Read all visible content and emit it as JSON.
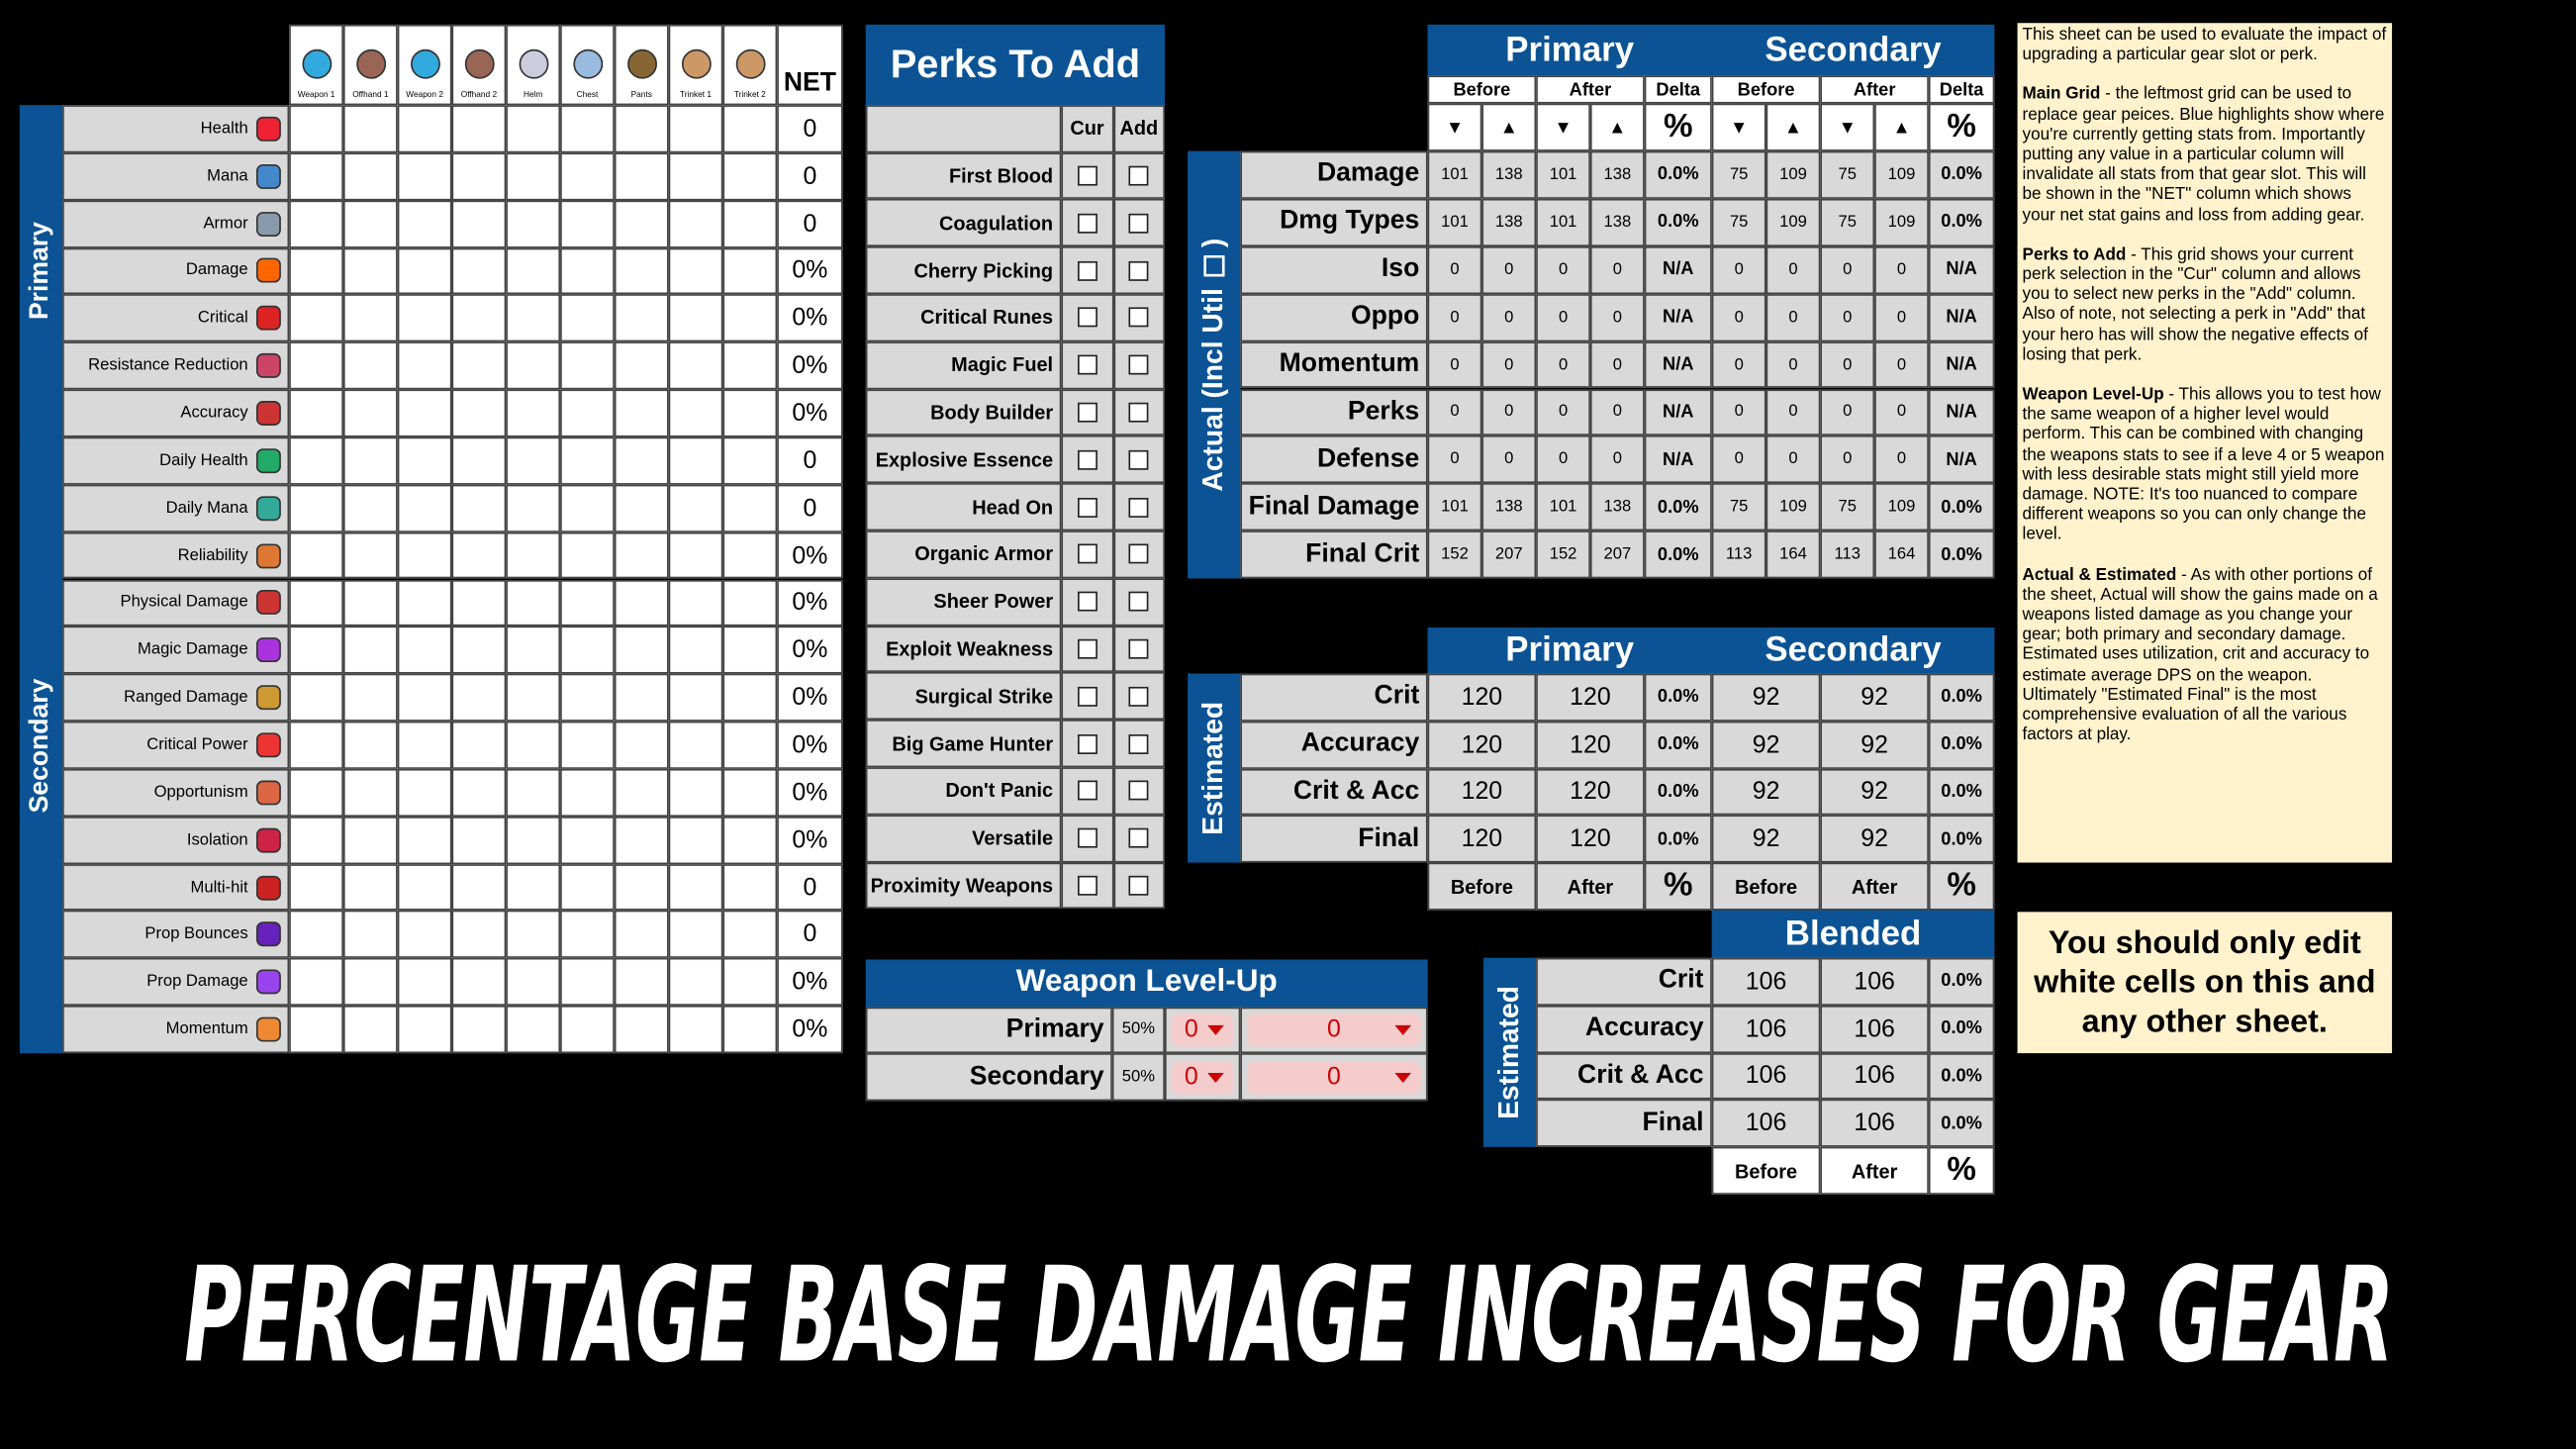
{
  "main_grid": {
    "columns": [
      "Weapon 1",
      "Offhand 1",
      "Weapon 2",
      "Offhand 2",
      "Helm",
      "Chest",
      "Pants",
      "Trinket 1",
      "Trinket 2"
    ],
    "net_header": "NET",
    "sections": [
      {
        "label": "Primary",
        "rows": [
          {
            "label": "Health",
            "net": "0"
          },
          {
            "label": "Mana",
            "net": "0"
          },
          {
            "label": "Armor",
            "net": "0"
          },
          {
            "label": "Damage",
            "net": "0%"
          },
          {
            "label": "Critical",
            "net": "0%"
          },
          {
            "label": "Resistance Reduction",
            "net": "0%"
          },
          {
            "label": "Accuracy",
            "net": "0%"
          }
        ]
      },
      {
        "label": "Secondary",
        "rows": [
          {
            "label": "Daily Health",
            "net": "0"
          },
          {
            "label": "Daily Mana",
            "net": "0"
          },
          {
            "label": "Reliability",
            "net": "0%"
          },
          {
            "label": "Physical Damage",
            "net": "0%"
          },
          {
            "label": "Magic Damage",
            "net": "0%"
          },
          {
            "label": "Ranged Damage",
            "net": "0%"
          },
          {
            "label": "Critical Power",
            "net": "0%"
          },
          {
            "label": "Opportunism",
            "net": "0%"
          },
          {
            "label": "Isolation",
            "net": "0%"
          },
          {
            "label": "Multi-hit",
            "net": "0"
          },
          {
            "label": "Prop Bounces",
            "net": "0"
          },
          {
            "label": "Prop Damage",
            "net": "0%"
          },
          {
            "label": "Momentum",
            "net": "0%"
          }
        ]
      }
    ]
  },
  "perks": {
    "title": "Perks To Add",
    "headers": [
      "Cur",
      "Add"
    ],
    "rows": [
      "First Blood",
      "Coagulation",
      "Cherry Picking",
      "Critical Runes",
      "Magic Fuel",
      "Body Builder",
      "Explosive Essence",
      "Head On",
      "Organic Armor",
      "Sheer Power",
      "Exploit Weakness",
      "Surgical Strike",
      "Big Game Hunter",
      "Don't Panic",
      "Versatile",
      "Proximity Weapons"
    ]
  },
  "actual": {
    "side_label": "Actual  (Incl Util ☐)",
    "groups": [
      "Primary",
      "Secondary"
    ],
    "subheaders": [
      "Before",
      "After",
      "Delta",
      "Before",
      "After",
      "Delta"
    ],
    "sort_row": [
      "▼",
      "▲",
      "▼",
      "▲",
      "%",
      "▼",
      "▲",
      "▼",
      "▲",
      "%"
    ],
    "rows": [
      {
        "label": "Damage",
        "values": [
          "101",
          "138",
          "101",
          "138",
          "0.0%",
          "75",
          "109",
          "75",
          "109",
          "0.0%"
        ]
      },
      {
        "label": "Dmg Types",
        "values": [
          "101",
          "138",
          "101",
          "138",
          "0.0%",
          "75",
          "109",
          "75",
          "109",
          "0.0%"
        ]
      },
      {
        "label": "Iso",
        "values": [
          "0",
          "0",
          "0",
          "0",
          "N/A",
          "0",
          "0",
          "0",
          "0",
          "N/A"
        ]
      },
      {
        "label": "Oppo",
        "values": [
          "0",
          "0",
          "0",
          "0",
          "N/A",
          "0",
          "0",
          "0",
          "0",
          "N/A"
        ]
      },
      {
        "label": "Momentum",
        "values": [
          "0",
          "0",
          "0",
          "0",
          "N/A",
          "0",
          "0",
          "0",
          "0",
          "N/A"
        ]
      },
      {
        "label": "Perks",
        "values": [
          "0",
          "0",
          "0",
          "0",
          "N/A",
          "0",
          "0",
          "0",
          "0",
          "N/A"
        ]
      },
      {
        "label": "Defense",
        "values": [
          "0",
          "0",
          "0",
          "0",
          "N/A",
          "0",
          "0",
          "0",
          "0",
          "N/A"
        ]
      },
      {
        "label": "Final Damage",
        "values": [
          "101",
          "138",
          "101",
          "138",
          "0.0%",
          "75",
          "109",
          "75",
          "109",
          "0.0%"
        ]
      },
      {
        "label": "Final Crit",
        "values": [
          "152",
          "207",
          "152",
          "207",
          "0.0%",
          "113",
          "164",
          "113",
          "164",
          "0.0%"
        ]
      }
    ]
  },
  "estimated": {
    "side_label": "Estimated",
    "groups": [
      "Primary",
      "Secondary"
    ],
    "rows": [
      {
        "label": "Crit",
        "values": [
          "120",
          "120",
          "0.0%",
          "92",
          "92",
          "0.0%"
        ]
      },
      {
        "label": "Accuracy",
        "values": [
          "120",
          "120",
          "0.0%",
          "92",
          "92",
          "0.0%"
        ]
      },
      {
        "label": "Crit & Acc",
        "values": [
          "120",
          "120",
          "0.0%",
          "92",
          "92",
          "0.0%"
        ]
      },
      {
        "label": "Final",
        "values": [
          "120",
          "120",
          "0.0%",
          "92",
          "92",
          "0.0%"
        ]
      }
    ],
    "footer": [
      "Before",
      "After",
      "%",
      "Before",
      "After",
      "%"
    ]
  },
  "blended": {
    "title": "Blended",
    "side_label": "Estimated",
    "rows": [
      {
        "label": "Crit",
        "values": [
          "106",
          "106",
          "0.0%"
        ]
      },
      {
        "label": "Accuracy",
        "values": [
          "106",
          "106",
          "0.0%"
        ]
      },
      {
        "label": "Crit & Acc",
        "values": [
          "106",
          "106",
          "0.0%"
        ]
      },
      {
        "label": "Final",
        "values": [
          "106",
          "106",
          "0.0%"
        ]
      }
    ],
    "footer": [
      "Before",
      "After",
      "%"
    ]
  },
  "weapon_level_up": {
    "title": "Weapon Level-Up",
    "rows": [
      {
        "label": "Primary",
        "percent": "50%",
        "level": "0",
        "value": "0"
      },
      {
        "label": "Secondary",
        "percent": "50%",
        "level": "0",
        "value": "0"
      }
    ]
  },
  "notes": [
    {
      "heading": null,
      "text": "This sheet can be used to evaluate the impact of upgrading a particular gear slot or perk."
    },
    {
      "heading": "Main Grid",
      "text": "- the leftmost grid can be used to replace gear peices.  Blue highlights show where you're currently getting stats from.  Importantly putting any value in a particular column will invalidate all stats from that gear slot.  This will be shown in the \"NET\" column which shows your net stat gains and loss from adding gear."
    },
    {
      "heading": "Perks to Add",
      "text": "- This grid shows your current perk selection in the \"Cur\" column and allows you to select new perks in the \"Add\" column.  Also of note, not selecting a perk in \"Add\" that your hero has will show the negative effects of losing that perk."
    },
    {
      "heading": "Weapon Level-Up",
      "text": "- This allows you to test how the same weapon of a higher level would perform.  This can be combined with changing the weapons stats to see if a leve 4 or 5 weapon with less desirable stats might still yield more damage.  NOTE: It's too nuanced to compare different weapons so you can only change the level."
    },
    {
      "heading": "Actual & Estimated",
      "text": "- As with other portions of the sheet, Actual will show the gains made on a weapons listed damage as you change your gear; both primary and secondary damage.  Estimated uses utilization, crit and accuracy to estimate average DPS on the weapon.  Ultimately \"Estimated Final\" is the most comprehensive evaluation of all the various factors at play."
    }
  ],
  "warning": "You should only edit white cells on this and any other sheet.",
  "banner": "PERCENTAGE BASE DAMAGE INCREASES FOR GEAR"
}
